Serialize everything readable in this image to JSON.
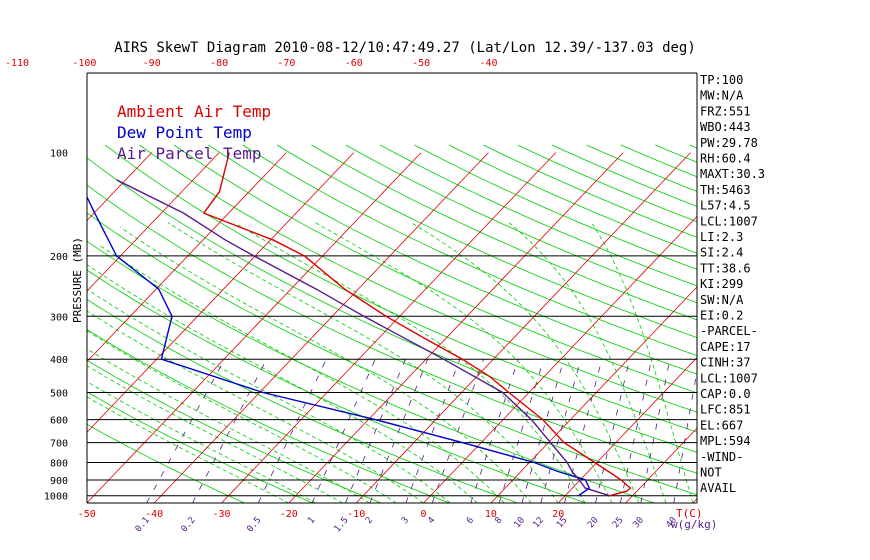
{
  "chart_data": {
    "type": "line",
    "title": "AIRS SkewT Diagram 2010-08-12/10:47:49.27 (Lat/Lon 12.39/-137.03 deg)",
    "ylabel": "PRESSURE (MB)",
    "xlabel_right": "T(C)",
    "mixing_label": "w(g/kg)",
    "y_scale": "log-pressure",
    "ylim": [
      1050,
      100
    ],
    "bottom_temp_ticks": [
      "-50",
      "-40",
      "-30",
      "-20",
      "-10",
      "0",
      "10",
      "20"
    ],
    "top_temp_ticks": [
      "-120",
      "-110",
      "-100",
      "-90",
      "-80",
      "-70",
      "-60",
      "-50",
      "-40"
    ],
    "pressure_ticks": [
      "100",
      "200",
      "300",
      "400",
      "500",
      "600",
      "700",
      "800",
      "900",
      "1000"
    ],
    "mixing_ratio_ticks": [
      "0.1",
      "0.2",
      "0.5",
      "1",
      "1.5",
      "2",
      "3",
      "4",
      "6",
      "8",
      "10",
      "12",
      "15",
      "20",
      "25",
      "30",
      "40"
    ],
    "legend": [
      {
        "name": "Ambient Air Temp",
        "color": "#dd0000"
      },
      {
        "name": "Dew Point Temp",
        "color": "#0000cc"
      },
      {
        "name": "Air Parcel Temp",
        "color": "#551a8b"
      }
    ],
    "grid": true,
    "series": [
      {
        "name": "Ambient Air Temp",
        "color": "#dd0000",
        "points": [
          {
            "p": 1000,
            "t": 26.6
          },
          {
            "p": 970,
            "t": 28.5
          },
          {
            "p": 950,
            "t": 28.6
          },
          {
            "p": 900,
            "t": 26.1
          },
          {
            "p": 850,
            "t": 23.0
          },
          {
            "p": 800,
            "t": 19.7
          },
          {
            "p": 700,
            "t": 12.3
          },
          {
            "p": 600,
            "t": 5.9
          },
          {
            "p": 500,
            "t": -3.0
          },
          {
            "p": 450,
            "t": -8.0
          },
          {
            "p": 400,
            "t": -14.6
          },
          {
            "p": 350,
            "t": -22.8
          },
          {
            "p": 300,
            "t": -32.0
          },
          {
            "p": 250,
            "t": -42.0
          },
          {
            "p": 200,
            "t": -52.7
          },
          {
            "p": 180,
            "t": -59.5
          },
          {
            "p": 150,
            "t": -73.7
          },
          {
            "p": 130,
            "t": -74.4
          },
          {
            "p": 100,
            "t": -78.5
          }
        ]
      },
      {
        "name": "Dew Point Temp",
        "color": "#0000cc",
        "points": [
          {
            "p": 1000,
            "t": 22.0
          },
          {
            "p": 950,
            "t": 22.5
          },
          {
            "p": 900,
            "t": 20.8
          },
          {
            "p": 850,
            "t": 15.5
          },
          {
            "p": 800,
            "t": 10.7
          },
          {
            "p": 700,
            "t": -2.8
          },
          {
            "p": 600,
            "t": -19.0
          },
          {
            "p": 500,
            "t": -39.5
          },
          {
            "p": 400,
            "t": -59.3
          },
          {
            "p": 300,
            "t": -63.8
          },
          {
            "p": 250,
            "t": -69.6
          },
          {
            "p": 200,
            "t": -80.6
          },
          {
            "p": 150,
            "t": -89.9
          },
          {
            "p": 100,
            "t": -102.8
          }
        ]
      },
      {
        "name": "Air Parcel Temp",
        "color": "#551a8b",
        "points": [
          {
            "p": 1000,
            "t": 26.6
          },
          {
            "p": 950,
            "t": 21.9
          },
          {
            "p": 900,
            "t": 19.9
          },
          {
            "p": 850,
            "t": 17.6
          },
          {
            "p": 800,
            "t": 15.6
          },
          {
            "p": 700,
            "t": 10.3
          },
          {
            "p": 600,
            "t": 4.2
          },
          {
            "p": 500,
            "t": -3.9
          },
          {
            "p": 400,
            "t": -17.4
          },
          {
            "p": 300,
            "t": -35.3
          },
          {
            "p": 250,
            "t": -46.2
          },
          {
            "p": 200,
            "t": -60.2
          },
          {
            "p": 180,
            "t": -66.6
          },
          {
            "p": 150,
            "t": -76.7
          },
          {
            "p": 120,
            "t": -91.4
          }
        ]
      }
    ]
  },
  "stats": [
    "TP:100",
    "MW:N/A",
    "FRZ:551",
    "WBO:443",
    "PW:29.78",
    "RH:60.4",
    "MAXT:30.3",
    "TH:5463",
    "L57:4.5",
    "LCL:1007",
    "LI:2.3",
    "SI:2.4",
    "TT:38.6",
    "KI:299",
    "SW:N/A",
    "EI:0.2",
    "-PARCEL-",
    "CAPE:17",
    "CINH:37",
    "LCL:1007",
    "CAP:0.0",
    "LFC:851",
    "EL:667",
    "MPL:594",
    "-WIND-",
    "NOT",
    "AVAIL"
  ],
  "colors": {
    "isotherm": "#dd0000",
    "dry_adiabat": "#00cc00",
    "moist_adiabat": "#00cc00",
    "mixing_ratio": "#551a8b",
    "pressure_grid": "#000000",
    "bottom_axis": "#dd0000",
    "top_axis": "#dd0000"
  }
}
